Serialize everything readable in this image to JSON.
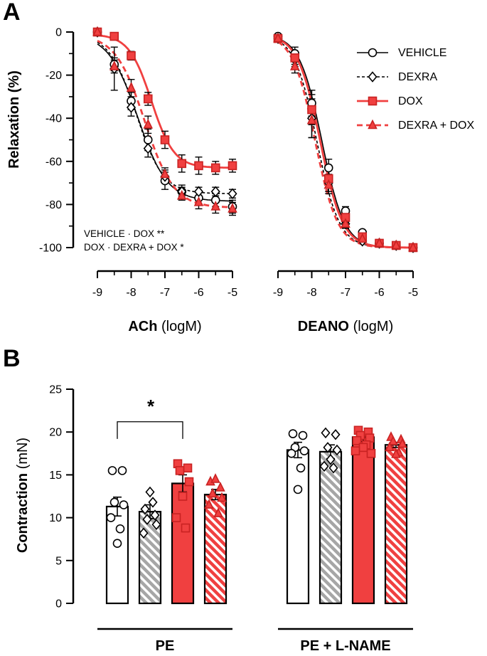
{
  "colors": {
    "red": "#f04040",
    "gray": "#a6a6a6",
    "black": "#000000",
    "white": "#ffffff"
  },
  "panels": {
    "a": "A",
    "b": "B"
  },
  "chart_data": [
    {
      "id": "ach",
      "type": "line",
      "title": "",
      "ylabel": "Relaxation (%)",
      "xlabel_bold": "ACh",
      "xlabel_rest": "(logM)",
      "ylim": [
        -100,
        0
      ],
      "xlim": [
        -9,
        -5
      ],
      "yticks": [
        0,
        -20,
        -40,
        -60,
        -80,
        -100
      ],
      "ytick_labels": [
        "0",
        "-20",
        "-40",
        "-60",
        "-80",
        "-100"
      ],
      "xticks": [
        -9,
        -8,
        -7,
        -6,
        -5
      ],
      "xminor": [
        -8.5,
        -7.5,
        -6.5,
        -5.5
      ],
      "xtick_labels": [
        "-9",
        "-8",
        "-7",
        "-6",
        "-5"
      ],
      "series": [
        {
          "name": "VEHICLE",
          "marker": "circle",
          "style": "solid",
          "fill": "white",
          "color": "black",
          "points": [
            [
              -9,
              0
            ],
            [
              -8.5,
              -15
            ],
            [
              -8,
              -32
            ],
            [
              -7.5,
              -50
            ],
            [
              -7,
              -69
            ],
            [
              -6.5,
              -74
            ],
            [
              -6,
              -77
            ],
            [
              -5.5,
              -78
            ],
            [
              -5,
              -81
            ]
          ],
          "err": [
            1,
            3,
            4,
            5,
            4,
            3,
            3,
            3,
            3
          ],
          "fit": {
            "top": -1,
            "bottom": -78.5,
            "ec50": -7.8,
            "hill": 1.0
          }
        },
        {
          "name": "DEXRA",
          "marker": "diamond",
          "style": "dashed",
          "fill": "white",
          "color": "black",
          "points": [
            [
              -9,
              0
            ],
            [
              -8.5,
              -17
            ],
            [
              -8,
              -35
            ],
            [
              -7.5,
              -54
            ],
            [
              -7,
              -67
            ],
            [
              -6.5,
              -74
            ],
            [
              -6,
              -74
            ],
            [
              -5.5,
              -74
            ],
            [
              -5,
              -75
            ]
          ],
          "err": [
            1,
            10,
            4,
            4,
            3,
            2,
            2,
            2,
            2
          ],
          "fit": {
            "top": -1,
            "bottom": -75,
            "ec50": -7.85,
            "hill": 1.1
          }
        },
        {
          "name": "DOX",
          "marker": "square",
          "style": "solid",
          "fill": "red",
          "color": "red",
          "points": [
            [
              -9,
              0
            ],
            [
              -8.5,
              -2
            ],
            [
              -8,
              -11
            ],
            [
              -7.5,
              -31
            ],
            [
              -7,
              -50
            ],
            [
              -6.5,
              -61
            ],
            [
              -6,
              -62
            ],
            [
              -5.5,
              -63
            ],
            [
              -5,
              -62
            ]
          ],
          "err": [
            1,
            1,
            2,
            3,
            4,
            4,
            4,
            3,
            3
          ],
          "fit": {
            "top": -1,
            "bottom": -63,
            "ec50": -7.4,
            "hill": 1.3
          }
        },
        {
          "name": "DEXRA + DOX",
          "marker": "triangle",
          "style": "dashed",
          "fill": "red",
          "color": "red",
          "points": [
            [
              -9,
              0
            ],
            [
              -8.5,
              -16
            ],
            [
              -8,
              -26
            ],
            [
              -7.5,
              -43
            ],
            [
              -7,
              -66
            ],
            [
              -6.5,
              -76
            ],
            [
              -6,
              -79
            ],
            [
              -5.5,
              -81
            ],
            [
              -5,
              -82
            ]
          ],
          "err": [
            1,
            3,
            4,
            4,
            3,
            2,
            3,
            3,
            3
          ],
          "fit": {
            "top": -1,
            "bottom": -81.5,
            "ec50": -7.6,
            "hill": 1.0
          }
        }
      ],
      "annotations": [
        "VEHICLE · DOX **",
        "DOX · DEXRA + DOX *"
      ]
    },
    {
      "id": "deano",
      "type": "line",
      "title": "",
      "xlabel_bold": "DEANO",
      "xlabel_rest": "(logM)",
      "ylim": [
        -100,
        0
      ],
      "xlim": [
        -9,
        -5
      ],
      "xticks": [
        -9,
        -8,
        -7,
        -6,
        -5
      ],
      "xminor": [
        -8.5,
        -7.5,
        -6.5,
        -5.5
      ],
      "xtick_labels": [
        "-9",
        "-8",
        "-7",
        "-6",
        "-5"
      ],
      "series": [
        {
          "name": "VEHICLE",
          "marker": "circle",
          "style": "solid",
          "fill": "white",
          "color": "black",
          "points": [
            [
              -9,
              -2
            ],
            [
              -8.5,
              -10
            ],
            [
              -8,
              -33
            ],
            [
              -7.5,
              -63
            ],
            [
              -7,
              -83
            ],
            [
              -6.5,
              -93
            ],
            [
              -6,
              -98
            ],
            [
              -5.5,
              -99
            ],
            [
              -5,
              -100
            ]
          ],
          "err": [
            1,
            3,
            6,
            4,
            2,
            1,
            1,
            1,
            1
          ],
          "fit": {
            "top": -1,
            "bottom": -100,
            "ec50": -7.7,
            "hill": 1.3
          }
        },
        {
          "name": "DEXRA",
          "marker": "diamond",
          "style": "dashed",
          "fill": "white",
          "color": "black",
          "points": [
            [
              -9,
              -3
            ],
            [
              -8.5,
              -13
            ],
            [
              -8,
              -40
            ],
            [
              -7.5,
              -70
            ],
            [
              -7,
              -89
            ],
            [
              -6.5,
              -97
            ],
            [
              -6,
              -98
            ],
            [
              -5.5,
              -99
            ],
            [
              -5,
              -100
            ]
          ],
          "err": [
            1,
            3,
            9,
            4,
            2,
            1,
            1,
            1,
            1
          ],
          "fit": {
            "top": -1,
            "bottom": -100,
            "ec50": -7.85,
            "hill": 1.3
          }
        },
        {
          "name": "DOX",
          "marker": "square",
          "style": "solid",
          "fill": "red",
          "color": "red",
          "points": [
            [
              -9,
              -3
            ],
            [
              -8.5,
              -12
            ],
            [
              -8,
              -36
            ],
            [
              -7.5,
              -68
            ],
            [
              -7,
              -86
            ],
            [
              -6.5,
              -95
            ],
            [
              -6,
              -98
            ],
            [
              -5.5,
              -99
            ],
            [
              -5,
              -100
            ]
          ],
          "err": [
            1,
            3,
            7,
            4,
            2,
            1,
            1,
            1,
            1
          ],
          "fit": {
            "top": -1,
            "bottom": -100,
            "ec50": -7.75,
            "hill": 1.3
          }
        },
        {
          "name": "DEXRA + DOX",
          "marker": "triangle",
          "style": "dashed",
          "fill": "red",
          "color": "red",
          "points": [
            [
              -9,
              -3
            ],
            [
              -8.5,
              -16
            ],
            [
              -8,
              -41
            ],
            [
              -7.5,
              -71
            ],
            [
              -7,
              -89
            ],
            [
              -6.5,
              -96
            ],
            [
              -6,
              -98
            ],
            [
              -5.5,
              -99
            ],
            [
              -5,
              -100
            ]
          ],
          "err": [
            1,
            3,
            8,
            4,
            2,
            1,
            1,
            1,
            1
          ],
          "fit": {
            "top": -1,
            "bottom": -100,
            "ec50": -7.9,
            "hill": 1.3
          }
        }
      ]
    },
    {
      "id": "contraction",
      "type": "bar",
      "ylabel_bold": "Contraction",
      "ylabel_rest": "(mN)",
      "ylim": [
        0,
        25
      ],
      "yticks": [
        0,
        5,
        10,
        15,
        20,
        25
      ],
      "ytick_labels": [
        "0",
        "5",
        "10",
        "15",
        "20",
        "25"
      ],
      "groups": [
        "PE",
        "PE + L-NAME"
      ],
      "series": [
        {
          "name": "VEHICLE",
          "marker": "circle",
          "fill": "white"
        },
        {
          "name": "DEXRA",
          "marker": "diamond",
          "fill": "gray-hatch"
        },
        {
          "name": "DOX",
          "marker": "square",
          "fill": "red"
        },
        {
          "name": "DEXRA + DOX",
          "marker": "triangle",
          "fill": "red-hatch"
        }
      ],
      "values": [
        [
          11.3,
          10.7,
          14.0,
          12.7
        ],
        [
          17.9,
          17.7,
          19.4,
          18.5
        ]
      ],
      "errors": [
        [
          1.1,
          0.8,
          1.0,
          0.6
        ],
        [
          0.9,
          0.8,
          0.5,
          0.3
        ]
      ],
      "points": [
        [
          [
            15.5,
            15.5,
            11.8,
            11.5,
            10.0,
            8.7,
            7.0
          ],
          [
            11.0,
            10.3,
            9.8,
            9.2,
            8.2,
            11.8,
            13.0
          ],
          [
            16.3,
            15.8,
            15.5,
            14.2,
            10.0,
            8.8,
            12.5
          ],
          [
            14.2,
            13.5,
            12.8,
            12.3,
            11.5,
            10.5,
            14.5
          ]
        ],
        [
          [
            19.8,
            19.6,
            18.2,
            17.8,
            17.5,
            15.8,
            13.3
          ],
          [
            19.9,
            19.7,
            18.2,
            17.9,
            16.0,
            15.8,
            16.8
          ],
          [
            20.2,
            20.0,
            19.6,
            19.3,
            19.0,
            18.5,
            18.2,
            17.8,
            17.5
          ],
          [
            19.4,
            19.1,
            18.9,
            18.6,
            18.2,
            17.6,
            17.4
          ]
        ]
      ],
      "significance": {
        "label": "*",
        "group": 0,
        "from": 0,
        "to": 2
      }
    }
  ]
}
